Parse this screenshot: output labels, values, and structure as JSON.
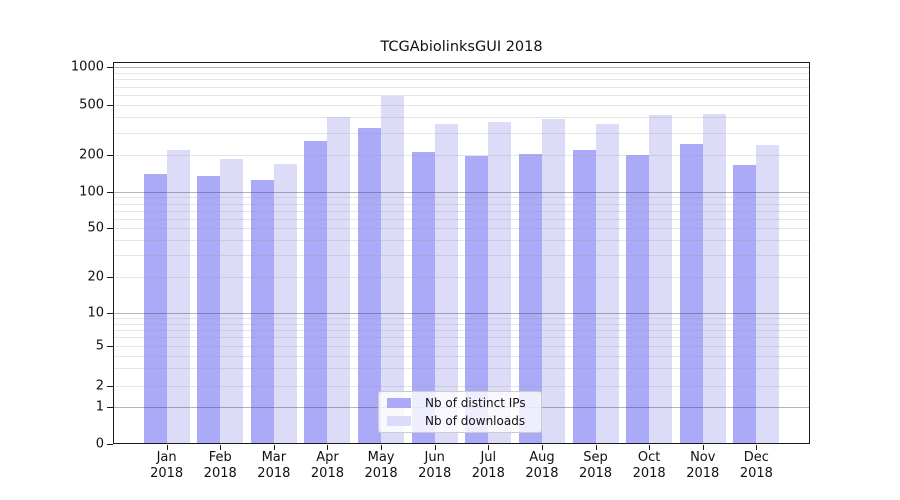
{
  "title": "TCGAbiolinksGUI 2018",
  "chart_data": {
    "type": "bar",
    "title": "TCGAbiolinksGUI 2018",
    "xlabel": "",
    "ylabel": "",
    "year": "2018",
    "categories": [
      "Jan",
      "Feb",
      "Mar",
      "Apr",
      "May",
      "Jun",
      "Jul",
      "Aug",
      "Sep",
      "Oct",
      "Nov",
      "Dec"
    ],
    "series": [
      {
        "name": "Nb of distinct IPs",
        "color": "#aaaaf8",
        "values": [
          140,
          135,
          125,
          260,
          330,
          210,
          195,
          205,
          220,
          200,
          245,
          165
        ]
      },
      {
        "name": "Nb of downloads",
        "color": "#dcdcf9",
        "values": [
          220,
          185,
          170,
          400,
          590,
          350,
          365,
          390,
          355,
          415,
          425,
          240
        ]
      }
    ],
    "yscale": "symlog",
    "y_ticks": [
      0,
      1,
      2,
      5,
      10,
      20,
      50,
      100,
      200,
      500,
      1000
    ],
    "ylim": [
      0,
      1000
    ],
    "grid": "both",
    "legend_position": "lower center"
  },
  "legend": {
    "items": [
      {
        "label": "Nb of distinct IPs"
      },
      {
        "label": "Nb of downloads"
      }
    ]
  },
  "colors": {
    "bar_dark": "#aaaaf8",
    "bar_light": "#dcdcf9",
    "grid_major": "#b3b3b3",
    "grid_minor": "#e6e6e6",
    "spine": "#1a1a1a"
  }
}
